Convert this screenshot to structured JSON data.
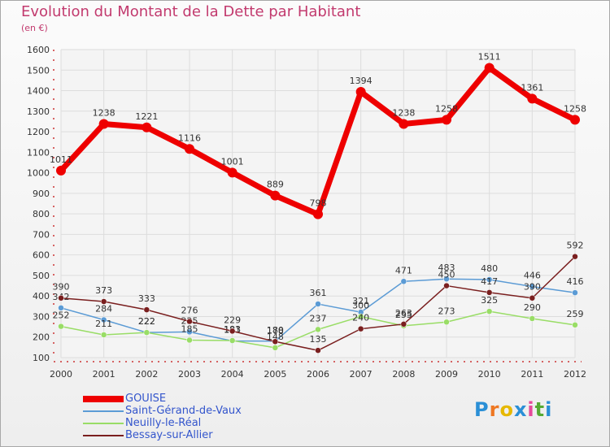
{
  "chart_data": {
    "type": "line",
    "title": "Evolution du Montant de la Dette par Habitant",
    "unit_label": "(en €)",
    "categories": [
      "2000",
      "2001",
      "2002",
      "2003",
      "2004",
      "2005",
      "2006",
      "2007",
      "2008",
      "2009",
      "2010",
      "2011",
      "2012"
    ],
    "ylim": [
      100,
      1600
    ],
    "yticks": [
      100,
      200,
      300,
      400,
      500,
      600,
      700,
      800,
      900,
      1000,
      1100,
      1200,
      1300,
      1400,
      1500,
      1600
    ],
    "grid": true,
    "legend_position": "bottom-left",
    "series": [
      {
        "name": "GOUISE",
        "color": "#ee0000",
        "values": [
          1011,
          1238,
          1221,
          1116,
          1001,
          889,
          798,
          1394,
          1238,
          1258,
          1511,
          1361,
          1258
        ]
      },
      {
        "name": "Saint-Gérand-de-Vaux",
        "color": "#5b9bd5",
        "values": [
          342,
          284,
          222,
          225,
          181,
          180,
          361,
          321,
          471,
          483,
          480,
          446,
          416
        ]
      },
      {
        "name": "Neuilly-le-Réal",
        "color": "#99dd66",
        "values": [
          252,
          211,
          222,
          185,
          183,
          148,
          237,
          300,
          255,
          273,
          325,
          290,
          259
        ]
      },
      {
        "name": "Bessay-sur-Allier",
        "color": "#7a1f1f",
        "values": [
          390,
          373,
          333,
          276,
          229,
          178,
          135,
          240,
          263,
          450,
          417,
          390,
          592
        ]
      }
    ]
  },
  "brand": {
    "letters": [
      "P",
      "r",
      "o",
      "x",
      "i",
      "t",
      "i"
    ],
    "colors": [
      "#2a8fd6",
      "#ee7722",
      "#e6b800",
      "#2a8fd6",
      "#e64a9a",
      "#55aa33",
      "#2a8fd6"
    ]
  }
}
